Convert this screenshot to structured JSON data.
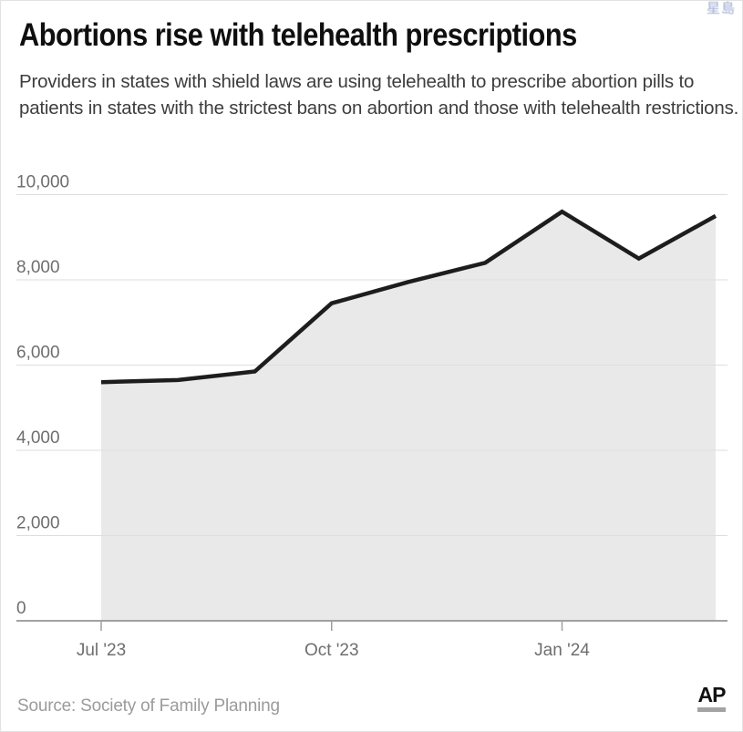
{
  "watermark": "星島",
  "header": {
    "title": "Abortions rise with telehealth prescriptions",
    "subtitle": "Providers in states with shield laws are using telehealth to prescribe abortion pills to patients in states with the strictest bans on abortion and those with telehealth restrictions."
  },
  "footer": {
    "source": "Source: Society of Family Planning",
    "logo": "AP"
  },
  "colors": {
    "line": "#1d1d1d",
    "area_fill": "#e9e9e9",
    "gridline": "#dedede",
    "baseline": "#949494",
    "tick": "#9f9f9f",
    "axis_label": "#6e6e6e",
    "source_text": "#9b9b9b",
    "watermark_blue": "#8d9cc9"
  },
  "chart_data": {
    "type": "area",
    "title": "Abortions rise with telehealth prescriptions",
    "subtitle": "Providers in states with shield laws are using telehealth to prescribe abortion pills to patients in states with the strictest bans on abortion and those with telehealth restrictions.",
    "x": [
      "Jul '23",
      "Aug '23",
      "Sep '23",
      "Oct '23",
      "Nov '23",
      "Dec '23",
      "Jan '24",
      "Feb '24",
      "Mar '24"
    ],
    "values": [
      5600,
      5650,
      5850,
      7450,
      7950,
      8400,
      9600,
      8500,
      9500
    ],
    "x_tick_indices": [
      0,
      3,
      6
    ],
    "x_tick_labels": [
      "Jul '23",
      "Oct '23",
      "Jan '24"
    ],
    "y_ticks": [
      0,
      2000,
      4000,
      6000,
      8000,
      10000
    ],
    "y_tick_labels": [
      "0",
      "2,000",
      "4,000",
      "6,000",
      "8,000",
      "10,000"
    ],
    "xlabel": "",
    "ylabel": "",
    "ylim": [
      0,
      10000
    ],
    "grid": true,
    "legend": null,
    "source": "Source: Society of Family Planning"
  }
}
